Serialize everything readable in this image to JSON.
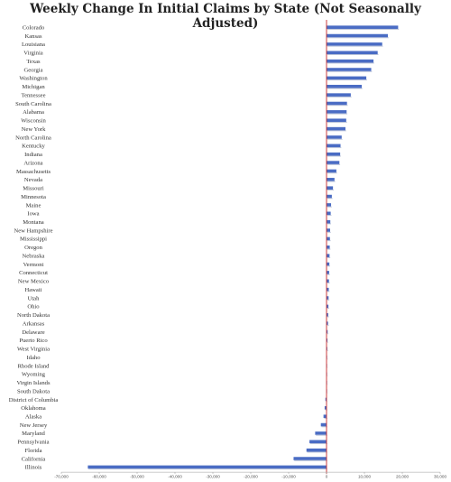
{
  "chart_data": {
    "type": "bar",
    "orientation": "horizontal",
    "title": "Weekly Change In Initial Claims by State (Not Seasonally Adjusted)",
    "xlabel": "",
    "ylabel": "",
    "xlim": [
      -70000,
      30000
    ],
    "xticks": [
      -70000,
      -60000,
      -50000,
      -40000,
      -30000,
      -20000,
      -10000,
      0,
      10000,
      20000,
      30000
    ],
    "xtick_labels": [
      "-70,000",
      "-60,000",
      "-50,000",
      "-40,000",
      "-30,000",
      "-20,000",
      "-10,000",
      "0",
      "10,000",
      "20,000",
      "30,000"
    ],
    "grid": false,
    "legend": "none",
    "categories": [
      "Colorado",
      "Kansas",
      "Louisiana",
      "Virginia",
      "Texas",
      "Georgia",
      "Washington",
      "Michigan",
      "Tennessee",
      "South Carolina",
      "Alabama",
      "Wisconsin",
      "New York",
      "North Carolina",
      "Kentucky",
      "Indiana",
      "Arizona",
      "Massachusetts",
      "Nevada",
      "Missouri",
      "Minnesota",
      "Maine",
      "Iowa",
      "Montana",
      "New Hampshire",
      "Mississippi",
      "Oregon",
      "Nebraska",
      "Vermont",
      "Connecticut",
      "New Mexico",
      "Hawaii",
      "Utah",
      "Ohio",
      "North Dakota",
      "Arkansas",
      "Delaware",
      "Puerto Rico",
      "West Virginia",
      "Idaho",
      "Rhode Island",
      "Wyoming",
      "Virgin Islands",
      "South Dakota",
      "District of Columbia",
      "Oklahoma",
      "Alaska",
      "New Jersey",
      "Maryland",
      "Pennsylvania",
      "Florida",
      "California",
      "Illinois"
    ],
    "values": [
      18900,
      16200,
      14700,
      13500,
      12400,
      11800,
      10500,
      9300,
      6400,
      5400,
      5300,
      5200,
      5000,
      4000,
      3700,
      3600,
      3400,
      2600,
      2100,
      1700,
      1400,
      1200,
      1100,
      1000,
      950,
      900,
      850,
      800,
      750,
      700,
      650,
      600,
      550,
      500,
      450,
      400,
      300,
      250,
      200,
      150,
      100,
      80,
      50,
      30,
      -300,
      -500,
      -800,
      -1500,
      -3000,
      -4500,
      -5300,
      -8700,
      -63000
    ],
    "bar_color": "#4a6cc4",
    "zero_line_color": "#c62828"
  }
}
